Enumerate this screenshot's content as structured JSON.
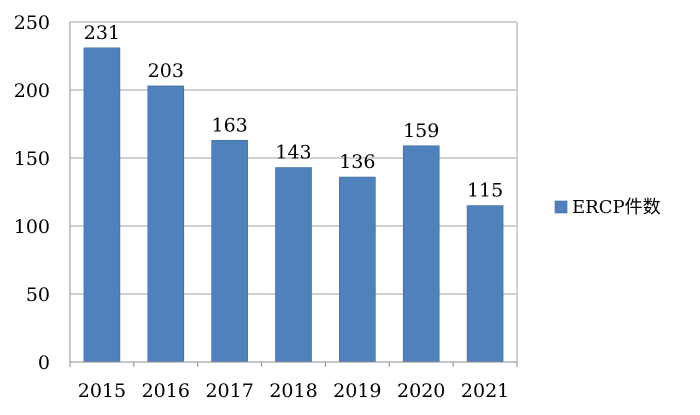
{
  "chart_data": {
    "type": "bar",
    "categories": [
      "2015",
      "2016",
      "2017",
      "2018",
      "2019",
      "2020",
      "2021"
    ],
    "series": [
      {
        "name": "ERCP件数",
        "values": [
          231,
          203,
          163,
          143,
          136,
          159,
          115
        ]
      }
    ],
    "ylim": [
      0,
      250
    ],
    "yticks": [
      0,
      50,
      100,
      150,
      200,
      250
    ],
    "grid": true,
    "legend": "right",
    "data_labels": true,
    "colors": {
      "bar": "#4F81BD",
      "bar_border": "#3C6896",
      "grid": "#A6A6A6",
      "axis": "#8C8C8C"
    }
  }
}
